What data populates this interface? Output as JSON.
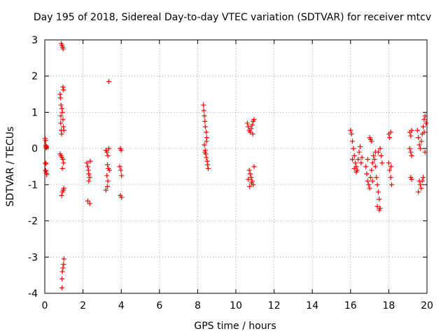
{
  "chart_data": {
    "type": "scatter",
    "title": "Day 195 of 2018, Sidereal Day-to-day VTEC variation (SDTVAR) for receiver mtcv",
    "xlabel": "GPS time / hours",
    "ylabel": "SDTVAR / TECUs",
    "xlim": [
      0,
      20
    ],
    "ylim": [
      -4,
      3
    ],
    "xticks": [
      "0",
      "2",
      "4",
      "6",
      "8",
      "10",
      "12",
      "14",
      "16",
      "18",
      "20"
    ],
    "yticks": [
      "-4",
      "-3",
      "-2",
      "-1",
      "0",
      "1",
      "2",
      "3"
    ],
    "grid": true,
    "marker": "+",
    "series": [
      {
        "name": "SDTVAR",
        "color": "#ff0000",
        "points": [
          [
            0.02,
            0.28
          ],
          [
            0.04,
            0.22
          ],
          [
            0.05,
            0.08
          ],
          [
            0.06,
            0.02
          ],
          [
            0.08,
            0.06
          ],
          [
            0.1,
            0.04
          ],
          [
            0.03,
            -0.4
          ],
          [
            0.06,
            -0.42
          ],
          [
            0.05,
            -0.62
          ],
          [
            0.08,
            -0.68
          ],
          [
            0.1,
            -0.72
          ],
          [
            0.04,
            -0.6
          ],
          [
            0.8,
            1.5
          ],
          [
            0.82,
            1.4
          ],
          [
            0.85,
            1.2
          ],
          [
            0.84,
            0.9
          ],
          [
            0.83,
            0.7
          ],
          [
            0.86,
            0.5
          ],
          [
            0.88,
            0.4
          ],
          [
            0.9,
            1.1
          ],
          [
            0.92,
            1.0
          ],
          [
            0.95,
            0.8
          ],
          [
            0.97,
            0.6
          ],
          [
            1.0,
            0.5
          ],
          [
            0.95,
            1.7
          ],
          [
            0.98,
            1.62
          ],
          [
            0.86,
            2.9
          ],
          [
            0.9,
            2.85
          ],
          [
            0.93,
            2.8
          ],
          [
            0.96,
            2.75
          ],
          [
            0.8,
            -0.15
          ],
          [
            0.85,
            -0.2
          ],
          [
            0.9,
            -0.25
          ],
          [
            0.95,
            -0.3
          ],
          [
            0.98,
            -0.4
          ],
          [
            0.92,
            -0.55
          ],
          [
            0.88,
            -1.3
          ],
          [
            0.92,
            -1.2
          ],
          [
            0.97,
            -1.15
          ],
          [
            1.0,
            -1.1
          ],
          [
            0.9,
            -3.85
          ],
          [
            0.9,
            -3.6
          ],
          [
            0.92,
            -3.4
          ],
          [
            0.95,
            -3.3
          ],
          [
            0.98,
            -3.2
          ],
          [
            1.0,
            -3.05
          ],
          [
            2.2,
            -0.4
          ],
          [
            2.25,
            -0.5
          ],
          [
            2.28,
            -0.6
          ],
          [
            2.3,
            -0.7
          ],
          [
            2.35,
            -0.8
          ],
          [
            2.3,
            -0.9
          ],
          [
            2.38,
            -0.35
          ],
          [
            2.25,
            -1.45
          ],
          [
            2.35,
            -1.52
          ],
          [
            3.2,
            -0.05
          ],
          [
            3.25,
            -0.1
          ],
          [
            3.3,
            -0.2
          ],
          [
            3.35,
            0.0
          ],
          [
            3.28,
            -0.45
          ],
          [
            3.32,
            -0.55
          ],
          [
            3.38,
            -0.6
          ],
          [
            3.25,
            -0.75
          ],
          [
            3.3,
            -0.9
          ],
          [
            3.2,
            -1.15
          ],
          [
            3.28,
            -1.05
          ],
          [
            3.35,
            1.85
          ],
          [
            3.95,
            0.0
          ],
          [
            4.0,
            -0.05
          ],
          [
            3.92,
            -0.5
          ],
          [
            3.98,
            -0.6
          ],
          [
            4.02,
            -0.75
          ],
          [
            3.95,
            -1.3
          ],
          [
            4.02,
            -1.35
          ],
          [
            8.3,
            1.2
          ],
          [
            8.32,
            1.05
          ],
          [
            8.35,
            0.9
          ],
          [
            8.38,
            0.75
          ],
          [
            8.4,
            0.6
          ],
          [
            8.45,
            0.45
          ],
          [
            8.48,
            0.3
          ],
          [
            8.35,
            0.1
          ],
          [
            8.4,
            -0.05
          ],
          [
            8.42,
            -0.15
          ],
          [
            8.45,
            -0.25
          ],
          [
            8.5,
            -0.35
          ],
          [
            8.52,
            -0.45
          ],
          [
            8.55,
            -0.55
          ],
          [
            8.38,
            -0.1
          ],
          [
            8.46,
            0.2
          ],
          [
            10.6,
            0.7
          ],
          [
            10.65,
            0.6
          ],
          [
            10.7,
            0.5
          ],
          [
            10.75,
            0.45
          ],
          [
            10.8,
            0.55
          ],
          [
            10.85,
            0.65
          ],
          [
            10.9,
            0.75
          ],
          [
            10.95,
            0.8
          ],
          [
            10.88,
            0.4
          ],
          [
            10.7,
            -0.6
          ],
          [
            10.75,
            -0.7
          ],
          [
            10.8,
            -0.8
          ],
          [
            10.85,
            -0.9
          ],
          [
            10.9,
            -1.0
          ],
          [
            10.95,
            -0.5
          ],
          [
            10.65,
            -0.85
          ],
          [
            10.72,
            -1.05
          ],
          [
            10.82,
            -0.95
          ],
          [
            16.0,
            0.5
          ],
          [
            16.05,
            0.4
          ],
          [
            16.1,
            0.2
          ],
          [
            16.15,
            0.0
          ],
          [
            16.2,
            -0.2
          ],
          [
            16.25,
            -0.4
          ],
          [
            16.3,
            -0.5
          ],
          [
            16.35,
            -0.6
          ],
          [
            16.4,
            -0.3
          ],
          [
            16.45,
            -0.1
          ],
          [
            16.5,
            0.05
          ],
          [
            16.1,
            -0.3
          ],
          [
            16.2,
            -0.55
          ],
          [
            16.3,
            -0.65
          ],
          [
            16.55,
            -0.4
          ],
          [
            16.6,
            -0.25
          ],
          [
            16.8,
            -0.5
          ],
          [
            16.85,
            -0.7
          ],
          [
            16.9,
            -0.9
          ],
          [
            16.95,
            -1.0
          ],
          [
            17.0,
            -1.1
          ],
          [
            17.05,
            -0.8
          ],
          [
            17.1,
            -0.6
          ],
          [
            17.15,
            -0.4
          ],
          [
            17.2,
            -0.2
          ],
          [
            17.0,
            0.3
          ],
          [
            17.05,
            0.25
          ],
          [
            17.1,
            0.2
          ],
          [
            17.25,
            -0.3
          ],
          [
            17.3,
            -0.5
          ],
          [
            17.35,
            -0.8
          ],
          [
            17.4,
            -1.0
          ],
          [
            17.45,
            -1.2
          ],
          [
            17.5,
            -1.4
          ],
          [
            17.55,
            -1.65
          ],
          [
            17.5,
            -1.7
          ],
          [
            17.4,
            -1.6
          ],
          [
            17.45,
            -0.1
          ],
          [
            17.55,
            0.0
          ],
          [
            17.6,
            -0.2
          ],
          [
            17.65,
            -0.4
          ],
          [
            16.9,
            -0.3
          ],
          [
            17.15,
            -0.9
          ],
          [
            17.3,
            -0.1
          ],
          [
            18.0,
            0.4
          ],
          [
            18.05,
            0.3
          ],
          [
            18.1,
            0.45
          ],
          [
            18.0,
            -0.4
          ],
          [
            18.05,
            -0.6
          ],
          [
            18.1,
            -0.8
          ],
          [
            18.15,
            -1.0
          ],
          [
            18.12,
            -0.5
          ],
          [
            19.1,
            0.45
          ],
          [
            19.15,
            0.35
          ],
          [
            19.2,
            0.5
          ],
          [
            19.1,
            0.0
          ],
          [
            19.15,
            -0.1
          ],
          [
            19.2,
            -0.2
          ],
          [
            19.15,
            -0.8
          ],
          [
            19.2,
            -0.85
          ],
          [
            19.5,
            0.5
          ],
          [
            19.55,
            0.3
          ],
          [
            19.6,
            0.1
          ],
          [
            19.65,
            0.0
          ],
          [
            19.7,
            0.2
          ],
          [
            19.75,
            0.4
          ],
          [
            19.8,
            0.6
          ],
          [
            19.85,
            0.8
          ],
          [
            19.9,
            0.9
          ],
          [
            19.95,
            0.7
          ],
          [
            19.6,
            -0.9
          ],
          [
            19.65,
            -1.0
          ],
          [
            19.7,
            -1.1
          ],
          [
            19.75,
            -0.9
          ],
          [
            19.8,
            -0.8
          ],
          [
            19.9,
            -0.1
          ],
          [
            19.55,
            -1.2
          ],
          [
            19.85,
            0.45
          ]
        ]
      }
    ]
  }
}
